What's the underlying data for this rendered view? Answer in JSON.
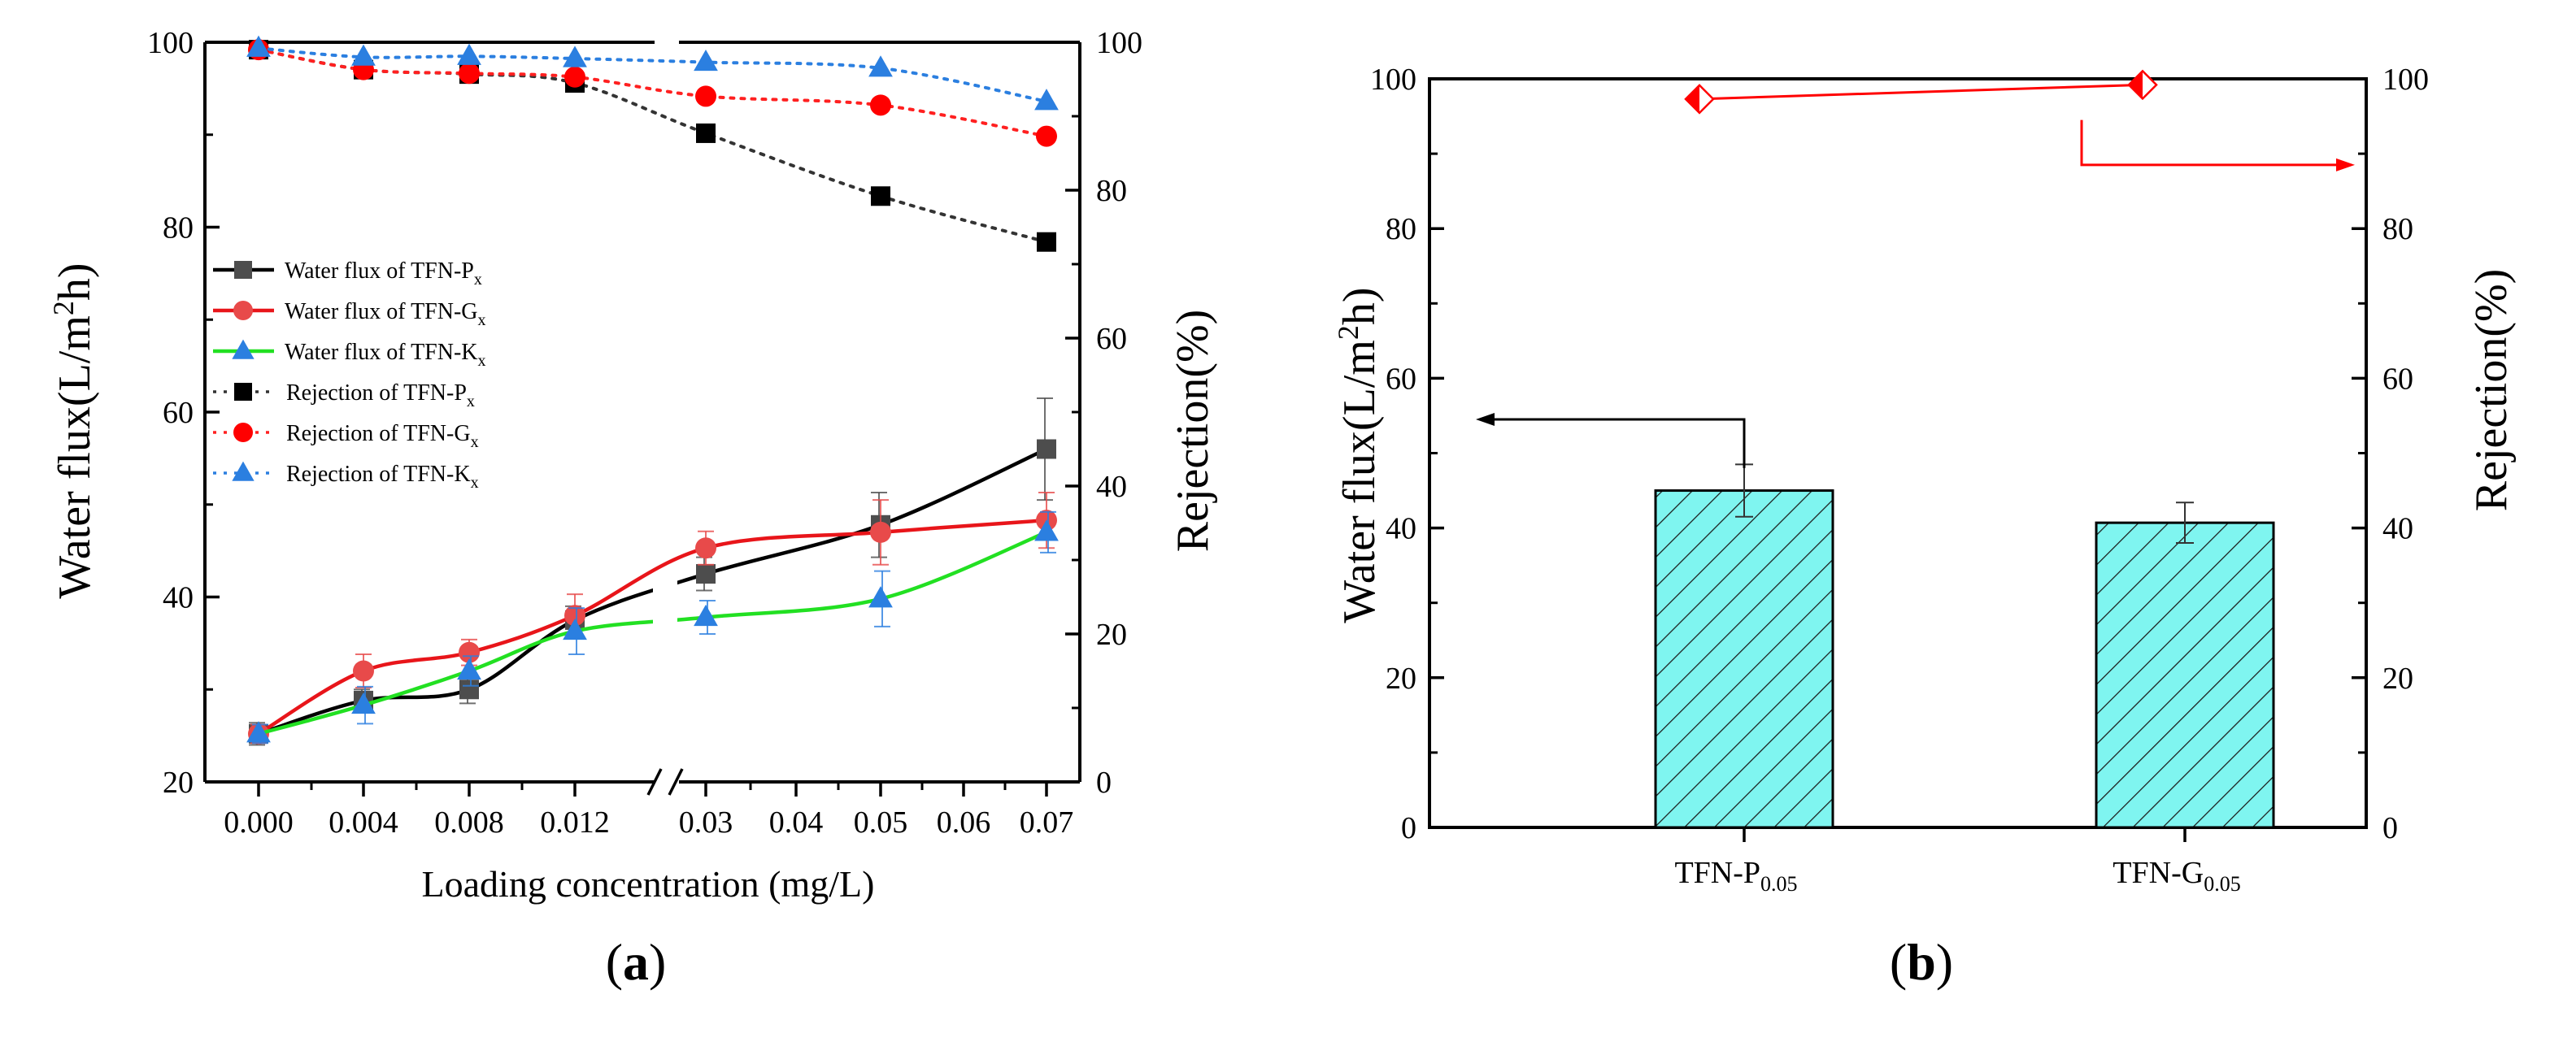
{
  "chart_data": [
    {
      "panel": "(a)",
      "panel_letter": "a",
      "type": "line",
      "xlabel": "Loading concentration (mg/L)",
      "ylabel": "Water flux(L/m2h)",
      "ylabel_main": "Water flux(L/m",
      "ylabel_sup": "2",
      "ylabel_end": "h)",
      "ylabel_right": "Rejection(%)",
      "x_categories": [
        "0.000",
        "0.004",
        "0.008",
        "0.012",
        "0.03",
        "0.04",
        "0.05",
        "0.06",
        "0.07"
      ],
      "x_axis_break": "between 0.012 and 0.03",
      "ylim_left": [
        20,
        100
      ],
      "ylim_right": [
        0,
        100
      ],
      "yticks_left": [
        "20",
        "40",
        "60",
        "80",
        "100"
      ],
      "yticks_right": [
        "0",
        "20",
        "40",
        "60",
        "80",
        "100"
      ],
      "series": [
        {
          "name": "Water flux of TFN-Px",
          "label_base": "Water flux of TFN-P",
          "label_sub": "x",
          "axis": "left",
          "marker": "square",
          "color": "#4d4d4d",
          "line_color": "#000000",
          "style": "solid",
          "x": [
            "0.000",
            "0.004",
            "0.008",
            "0.012",
            "0.03",
            "0.05",
            "0.07"
          ],
          "values": [
            25.2,
            28.8,
            30.0,
            37.5,
            42.5,
            47.8,
            56.0
          ],
          "errors": [
            1.2,
            1.2,
            1.5,
            1.5,
            1.8,
            3.5,
            5.5
          ]
        },
        {
          "name": "Water flux of TFN-Gx",
          "label_base": "Water flux of TFN-G",
          "label_sub": "x",
          "axis": "left",
          "marker": "circle",
          "color": "#e84a4a",
          "line_color": "#e8151a",
          "style": "solid",
          "x": [
            "0.000",
            "0.004",
            "0.008",
            "0.012",
            "0.03",
            "0.05",
            "0.07"
          ],
          "values": [
            25.2,
            32.0,
            34.0,
            38.0,
            45.3,
            47.0,
            48.3
          ],
          "errors": [
            1.0,
            1.8,
            1.4,
            2.3,
            1.8,
            3.5,
            3.0
          ]
        },
        {
          "name": "Water flux of TFN-Kx",
          "label_base": "Water flux of TFN-K",
          "label_sub": "x",
          "axis": "left",
          "marker": "triangle",
          "color": "#2b7fe0",
          "line_color": "#22e022",
          "style": "solid",
          "x": [
            "0.000",
            "0.004",
            "0.008",
            "0.012",
            "0.03",
            "0.05",
            "0.07"
          ],
          "values": [
            25.2,
            28.3,
            32.0,
            36.3,
            37.8,
            39.8,
            47.0
          ],
          "errors": [
            1.0,
            2.0,
            1.6,
            2.5,
            1.8,
            3.0,
            2.2
          ]
        },
        {
          "name": "Rejection of TFN-Px",
          "label_base": "Rejection of TFN-P",
          "label_sub": "x",
          "axis": "right",
          "marker": "square",
          "color": "#000000",
          "line_color": "#333333",
          "style": "dotted",
          "x": [
            "0.000",
            "0.004",
            "0.008",
            "0.012",
            "0.03",
            "0.05",
            "0.07"
          ],
          "values": [
            99.0,
            96.3,
            95.7,
            94.5,
            87.7,
            79.2,
            73.0
          ]
        },
        {
          "name": "Rejection of TFN-Gx",
          "label_base": "Rejection of TFN-G",
          "label_sub": "x",
          "axis": "right",
          "marker": "circle",
          "color": "#ff0000",
          "line_color": "#ff2020",
          "style": "dotted",
          "x": [
            "0.000",
            "0.004",
            "0.008",
            "0.012",
            "0.03",
            "0.05",
            "0.07"
          ],
          "values": [
            99.0,
            96.3,
            95.8,
            95.3,
            92.7,
            91.5,
            87.3
          ]
        },
        {
          "name": "Rejection of TFN-Kx",
          "label_base": "Rejection of TFN-K",
          "label_sub": "x",
          "axis": "right",
          "marker": "triangle",
          "color": "#2b7fe0",
          "line_color": "#2b7fe0",
          "style": "dotted",
          "x": [
            "0.000",
            "0.004",
            "0.008",
            "0.012",
            "0.03",
            "0.05",
            "0.07"
          ],
          "values": [
            99.2,
            98.0,
            98.1,
            97.8,
            97.3,
            96.5,
            92.0
          ]
        }
      ],
      "legend": "left"
    },
    {
      "panel": "(b)",
      "panel_letter": "b",
      "type": "bar",
      "ylabel": "Water flux(L/m2h)",
      "ylabel_main": "Water flux(L/m",
      "ylabel_sup": "2",
      "ylabel_end": "h)",
      "ylabel_right": "Rejection(%)",
      "categories": [
        "TFN-P0.05",
        "TFN-G0.05"
      ],
      "category_parts": [
        {
          "base": "TFN-P",
          "sub": "0.05"
        },
        {
          "base": "TFN-G",
          "sub": "0.05"
        }
      ],
      "ylim_left": [
        0,
        100
      ],
      "ylim_right": [
        0,
        100
      ],
      "yticks": [
        "0",
        "20",
        "40",
        "60",
        "80",
        "100"
      ],
      "series": [
        {
          "name": "Water flux",
          "axis": "left",
          "values": [
            45.0,
            40.7
          ],
          "errors": [
            3.5,
            2.7
          ],
          "color": "#7ff5f0",
          "hatch": "diagonal"
        },
        {
          "name": "Rejection",
          "axis": "right",
          "type": "line",
          "marker": "half-diamond",
          "values": [
            97.3,
            99.2
          ],
          "color": "#ff0000"
        }
      ]
    }
  ]
}
